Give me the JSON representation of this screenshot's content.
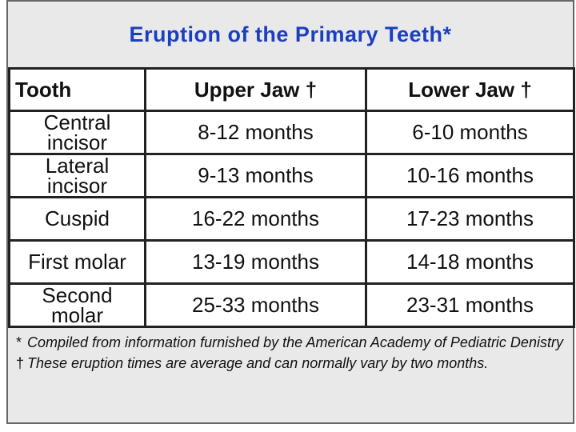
{
  "title": "Eruption of the Primary Teeth*",
  "table": {
    "header": [
      "Tooth",
      "Upper Jaw †",
      "Lower Jaw †"
    ],
    "rows": [
      [
        "Central incisor",
        "8-12 months",
        "6-10 months"
      ],
      [
        "Lateral incisor",
        "9-13 months",
        "10-16 months"
      ],
      [
        "Cuspid",
        "16-22 months",
        "17-23 months"
      ],
      [
        "First molar",
        "13-19 months",
        "14-18 months"
      ],
      [
        "Second molar",
        "25-33 months",
        "23-31 months"
      ]
    ]
  },
  "footnotes": [
    {
      "mark": "*",
      "text": "Compiled from information furnished by the American Academy of Pediatric Denistry"
    },
    {
      "mark": "†",
      "text": "These eruption times are average and can normally vary by two months."
    }
  ]
}
